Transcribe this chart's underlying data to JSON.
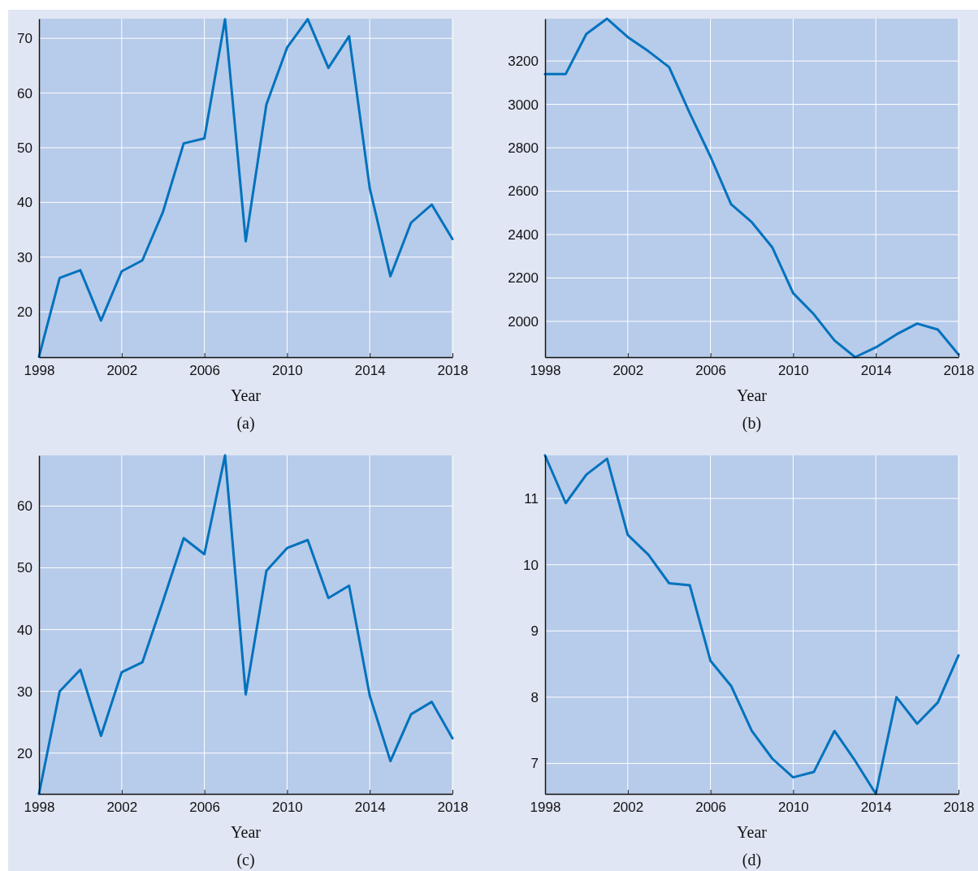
{
  "chart_data": [
    {
      "type": "line",
      "title": "(a)",
      "xlabel": "Year",
      "x": [
        1998,
        1999,
        2000,
        2001,
        2002,
        2003,
        2004,
        2005,
        2006,
        2007,
        2008,
        2009,
        2010,
        2011,
        2012,
        2013,
        2014,
        2015,
        2016,
        2017,
        2018
      ],
      "xlim": [
        1998,
        2018
      ],
      "xticks": [
        1998,
        2002,
        2006,
        2010,
        2014,
        2018
      ],
      "ylim": [
        11.7,
        73.6
      ],
      "yticks": [
        20,
        30,
        40,
        50,
        60,
        70
      ],
      "grid": true,
      "series": [
        {
          "color": "#0072bd",
          "values": [
            11.8,
            26.2,
            27.6,
            18.4,
            27.4,
            29.4,
            38.3,
            50.8,
            51.7,
            73.5,
            32.9,
            57.9,
            68.3,
            73.5,
            64.6,
            70.4,
            42.6,
            26.5,
            36.3,
            39.6,
            33.3
          ]
        }
      ]
    },
    {
      "type": "line",
      "title": "(b)",
      "xlabel": "Year",
      "x": [
        1998,
        1999,
        2000,
        2001,
        2002,
        2003,
        2004,
        2005,
        2006,
        2007,
        2008,
        2009,
        2010,
        2011,
        2012,
        2013,
        2014,
        2015,
        2016,
        2017,
        2018
      ],
      "xlim": [
        1998,
        2018
      ],
      "xticks": [
        1998,
        2002,
        2006,
        2010,
        2014,
        2018
      ],
      "ylim": [
        1835,
        3395
      ],
      "yticks": [
        2000,
        2200,
        2400,
        2600,
        2800,
        3000,
        3200
      ],
      "grid": true,
      "series": [
        {
          "color": "#0072bd",
          "values": [
            3140,
            3140,
            3325,
            3395,
            3310,
            3245,
            3172,
            2960,
            2760,
            2540,
            2457,
            2340,
            2130,
            2033,
            1912,
            1835,
            1880,
            1940,
            1990,
            1962,
            1847
          ]
        }
      ]
    },
    {
      "type": "line",
      "title": "(c)",
      "xlabel": "Year",
      "x": [
        1998,
        1999,
        2000,
        2001,
        2002,
        2003,
        2004,
        2005,
        2006,
        2007,
        2008,
        2009,
        2010,
        2011,
        2012,
        2013,
        2014,
        2015,
        2016,
        2017,
        2018
      ],
      "xlim": [
        1998,
        2018
      ],
      "xticks": [
        1998,
        2002,
        2006,
        2010,
        2014,
        2018
      ],
      "ylim": [
        13.4,
        68.2
      ],
      "yticks": [
        20,
        30,
        40,
        50,
        60
      ],
      "grid": true,
      "series": [
        {
          "color": "#0072bd",
          "values": [
            13.4,
            30.0,
            33.5,
            22.8,
            33.1,
            34.7,
            44.6,
            54.8,
            52.2,
            68.2,
            29.5,
            49.5,
            53.2,
            54.5,
            45.1,
            47.1,
            29.3,
            18.7,
            26.3,
            28.3,
            22.4
          ]
        }
      ]
    },
    {
      "type": "line",
      "title": "(d)",
      "xlabel": "Year",
      "x": [
        1998,
        1999,
        2000,
        2001,
        2002,
        2003,
        2004,
        2005,
        2006,
        2007,
        2008,
        2009,
        2010,
        2011,
        2012,
        2013,
        2014,
        2015,
        2016,
        2017,
        2018
      ],
      "xlim": [
        1998,
        2018
      ],
      "xticks": [
        1998,
        2002,
        2006,
        2010,
        2014,
        2018
      ],
      "ylim": [
        6.54,
        11.65
      ],
      "yticks": [
        7,
        8,
        9,
        10,
        11
      ],
      "grid": true,
      "series": [
        {
          "color": "#0072bd",
          "values": [
            11.65,
            10.93,
            11.36,
            11.6,
            10.45,
            10.15,
            9.72,
            9.69,
            8.55,
            8.17,
            7.49,
            7.07,
            6.79,
            6.87,
            7.49,
            7.04,
            6.54,
            8.0,
            7.6,
            7.92,
            8.63
          ]
        }
      ]
    }
  ]
}
